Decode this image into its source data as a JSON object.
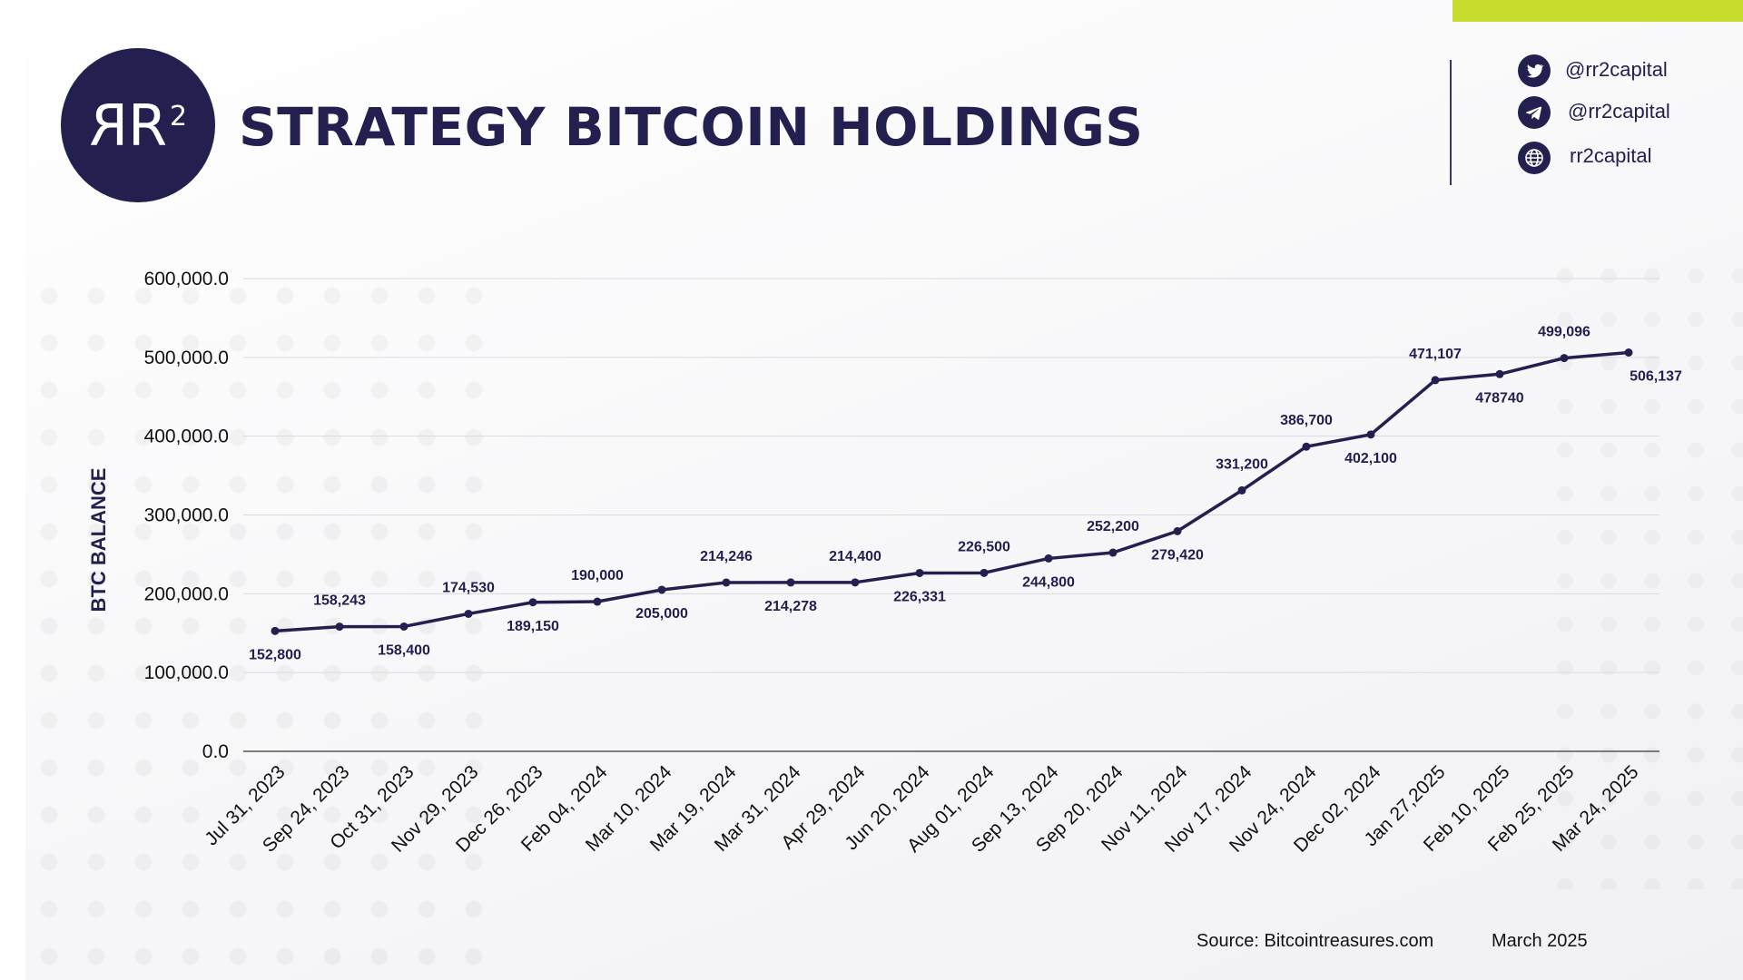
{
  "brand": {
    "logo_text": "RR",
    "logo_superscript": "2",
    "accent_color": "#c8dc2e",
    "primary_color": "#23204f"
  },
  "header": {
    "title": "STRATEGY BITCOIN HOLDINGS"
  },
  "social": [
    {
      "icon": "twitter-icon",
      "label": "@rr2capital"
    },
    {
      "icon": "telegram-icon",
      "label": "@rr2capital"
    },
    {
      "icon": "globe-icon",
      "label": "rr2capital"
    }
  ],
  "chart_data": {
    "type": "line",
    "title": "STRATEGY BITCOIN HOLDINGS",
    "xlabel": "",
    "ylabel": "BTC BALANCE",
    "ylim": [
      0,
      600000
    ],
    "yticks": [
      0,
      100000,
      200000,
      300000,
      400000,
      500000,
      600000
    ],
    "ytick_labels": [
      "0.0",
      "100,000.0",
      "200,000.0",
      "300,000.0",
      "400,000.0",
      "500,000.0",
      "600,000.0"
    ],
    "grid": true,
    "categories": [
      "Jul 31, 2023",
      "Sep 24, 2023",
      "Oct 31, 2023",
      "Nov 29, 2023",
      "Dec 26, 2023",
      "Feb 04, 2024",
      "Mar 10, 2024",
      "Mar 19, 2024",
      "Mar 31, 2024",
      "Apr 29, 2024",
      "Jun 20, 2024",
      "Aug 01, 2024",
      "Sep 13, 2024",
      "Sep 20, 2024",
      "Nov 11, 2024",
      "Nov 17, 2024",
      "Nov 24, 2024",
      "Dec 02, 2024",
      "Jan 27,2025",
      "Feb 10, 2025",
      "Feb 25, 2025",
      "Mar 24, 2025"
    ],
    "series": [
      {
        "name": "BTC Balance",
        "color": "#23204f",
        "values": [
          152800,
          158243,
          158400,
          174530,
          189150,
          190000,
          205000,
          214246,
          214278,
          214400,
          226331,
          226500,
          244800,
          252200,
          279420,
          331200,
          386700,
          402100,
          471107,
          478740,
          499096,
          506137
        ],
        "data_labels": [
          "152,800",
          "158,243",
          "158,400",
          "174,530",
          "189,150",
          "190,000",
          "205,000",
          "214,246",
          "214,278",
          "214,400",
          "226,331",
          "226,500",
          "244,800",
          "252,200",
          "279,420",
          "331,200",
          "386,700",
          "402,100",
          "471,107",
          "478740",
          "499,096",
          "506,137"
        ],
        "label_positions": [
          "below",
          "above",
          "below",
          "above",
          "below",
          "above",
          "below",
          "above",
          "below",
          "above",
          "below",
          "above",
          "below",
          "above",
          "below",
          "above",
          "above",
          "below",
          "above",
          "below",
          "above",
          "below"
        ]
      }
    ]
  },
  "footer": {
    "source": "Source: Bitcointreasures.com",
    "date": "March 2025"
  }
}
